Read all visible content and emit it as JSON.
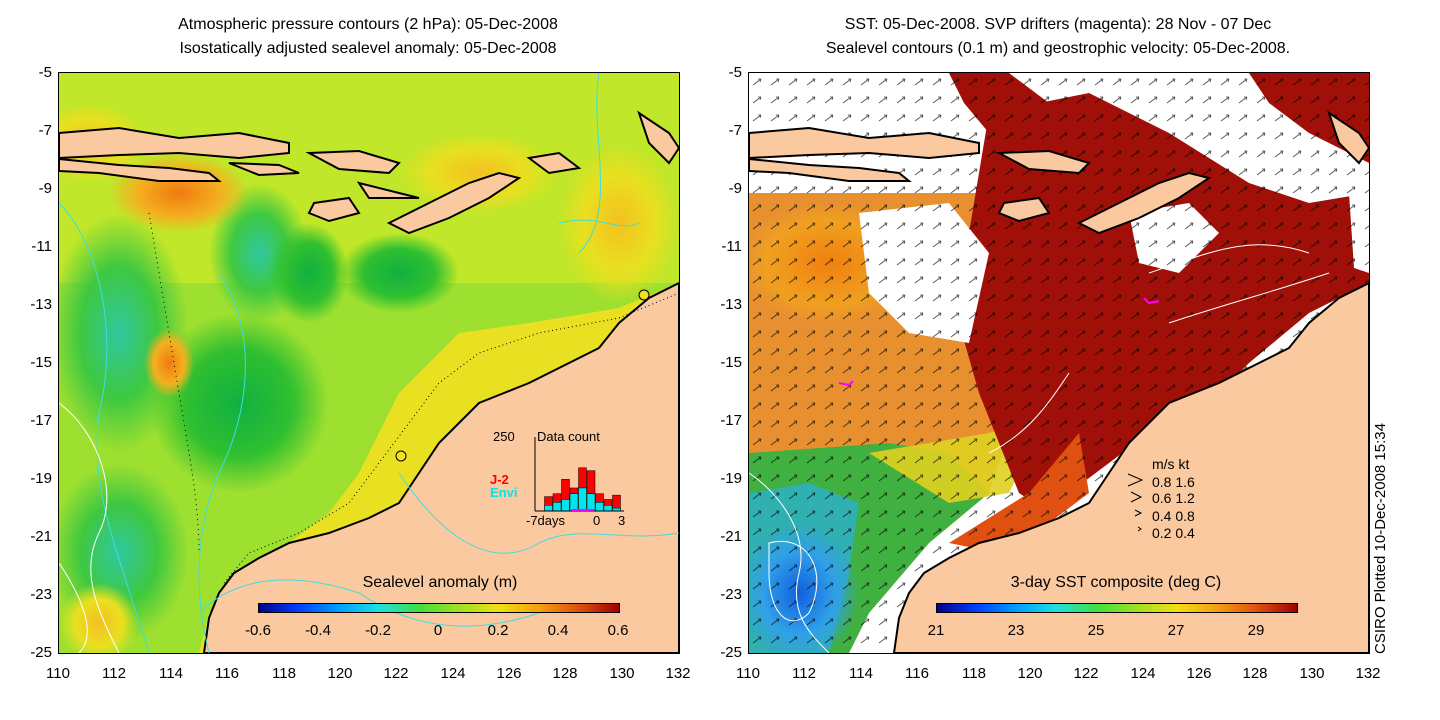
{
  "left_panel": {
    "title_line1": "Atmospheric pressure contours (2 hPa): 05-Dec-2008",
    "title_line2": "Isostatically adjusted sealevel anomaly: 05-Dec-2008",
    "colorbar": {
      "title": "Sealevel anomaly (m)",
      "labels": [
        "-0.6",
        "-0.4",
        "-0.2",
        "0",
        "0.2",
        "0.4",
        "0.6"
      ],
      "range": [
        -0.6,
        0.6
      ]
    },
    "histogram": {
      "ymax_label": "250",
      "title": "Data count",
      "series_j2": "J-2",
      "series_envi": "Envi",
      "x_labels": [
        "-7days",
        "0",
        "3"
      ],
      "j2_color": "#ff0000",
      "envi_color": "#00e5ee",
      "j2_values": [
        0,
        50,
        60,
        110,
        80,
        150,
        140,
        60,
        40,
        55
      ],
      "envi_values": [
        0,
        20,
        30,
        40,
        60,
        80,
        60,
        30,
        20,
        10
      ]
    }
  },
  "right_panel": {
    "title_line1": "SST: 05-Dec-2008. SVP drifters (magenta): 28 Nov - 07 Dec",
    "title_line2": "Sealevel contours (0.1 m) and geostrophic velocity: 05-Dec-2008.",
    "colorbar": {
      "title": "3-day SST composite (deg C)",
      "labels": [
        "21",
        "23",
        "25",
        "27",
        "29"
      ],
      "range": [
        20.5,
        29.5
      ]
    },
    "velocity_legend": {
      "header": "m/s  kt",
      "rows": [
        "0.8  1.6",
        "0.6  1.2",
        "0.4  0.8",
        "0.2  0.4"
      ],
      "speeds_ms": [
        0.8,
        0.6,
        0.4,
        0.2
      ]
    }
  },
  "axes": {
    "y_labels": [
      "-5",
      "-7",
      "-9",
      "-11",
      "-13",
      "-15",
      "-17",
      "-19",
      "-21",
      "-23",
      "-25"
    ],
    "x_labels": [
      "110",
      "112",
      "114",
      "116",
      "118",
      "120",
      "122",
      "124",
      "126",
      "128",
      "130",
      "132"
    ],
    "lat_range": [
      -25,
      -5
    ],
    "lon_range": [
      110,
      132
    ]
  },
  "credit": "CSIRO Plotted 10-Dec-2008 15:34",
  "colors": {
    "land": "#fbc99f",
    "contour_cyan": "#3ddde0",
    "contour_white": "#ffffff",
    "coast": "#000000",
    "drifter_magenta": "#ff00ff"
  }
}
